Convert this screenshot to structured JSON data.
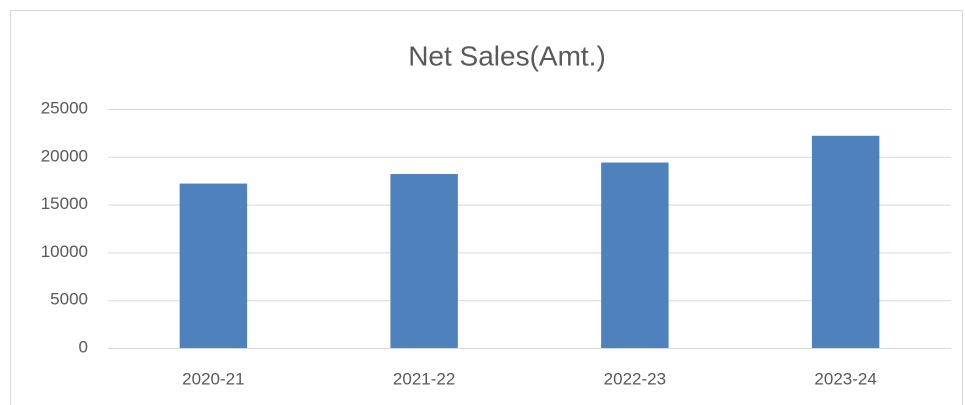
{
  "chart_data": {
    "type": "bar",
    "title": "Net Sales(Amt.)",
    "categories": [
      "2020-21",
      "2021-22",
      "2022-23",
      "2023-24"
    ],
    "values": [
      17200,
      18200,
      19400,
      22200
    ],
    "color": "#4f81bd",
    "ylim": [
      0,
      25000
    ],
    "yticks": [
      0,
      5000,
      10000,
      15000,
      20000,
      25000
    ],
    "grid": true
  }
}
